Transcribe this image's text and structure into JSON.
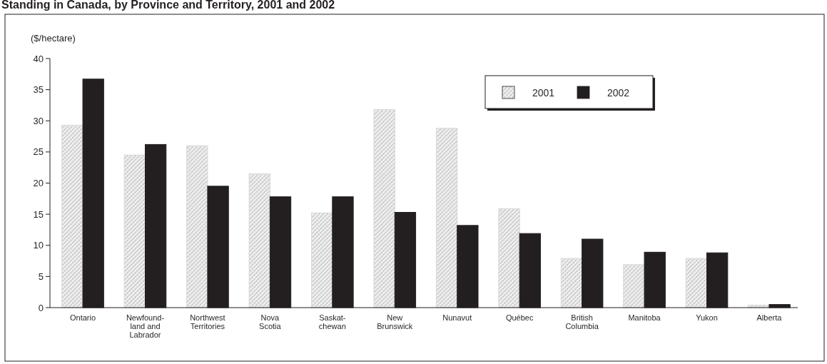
{
  "chart_data": {
    "type": "bar",
    "title": "Standing in Canada, by Province and Territory, 2001 and 2002",
    "ylabel": "($/hectare)",
    "categories": [
      "Ontario",
      "Newfound-\nland and\nLabrador",
      "Northwest\nTerritories",
      "Nova\nScotia",
      "Saskat-\nchewan",
      "New\nBrunswick",
      "Nunavut",
      "Québec",
      "British\nColumbia",
      "Manitoba",
      "Yukon",
      "Alberta"
    ],
    "series": [
      {
        "name": "2001",
        "color": "#d8d8d8",
        "values": [
          29.3,
          24.5,
          26.0,
          21.5,
          15.2,
          31.8,
          28.8,
          15.9,
          7.9,
          6.9,
          7.9,
          0.4
        ]
      },
      {
        "name": "2002",
        "color": "#231f20",
        "values": [
          36.7,
          26.2,
          19.5,
          17.8,
          17.8,
          15.3,
          13.2,
          11.9,
          11.0,
          8.9,
          8.8,
          0.5
        ]
      }
    ],
    "ylim": [
      0,
      40
    ],
    "yticks": [
      0,
      5,
      10,
      15,
      20,
      25,
      30,
      35,
      40
    ],
    "grid": false,
    "legend": "top right"
  }
}
